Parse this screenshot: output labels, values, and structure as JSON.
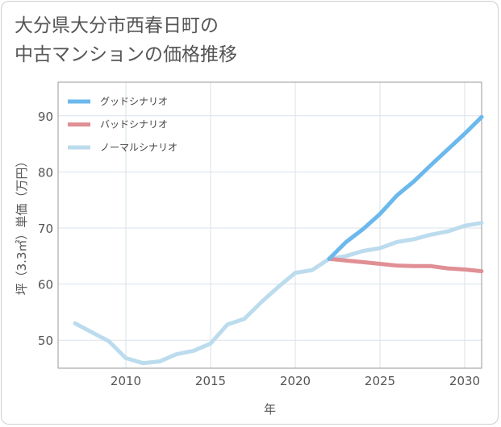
{
  "title_lines": [
    "大分県大分市西春日町の",
    "中古マンションの価格推移"
  ],
  "chart_data": {
    "type": "line",
    "xlabel": "年",
    "ylabel": "坪（3.3㎡）単価（万円）",
    "xlim": [
      2006,
      2031
    ],
    "ylim": [
      45,
      96
    ],
    "x_ticks": [
      2010,
      2015,
      2020,
      2025,
      2030
    ],
    "y_ticks": [
      50,
      60,
      70,
      80,
      90
    ],
    "grid": true,
    "legend_position": "top-left",
    "series": [
      {
        "name": "グッドシナリオ",
        "color": "#6bb8ec",
        "x": [
          2022,
          2023,
          2024,
          2025,
          2026,
          2027,
          2028,
          2029,
          2030,
          2031
        ],
        "y": [
          64.5,
          67.5,
          69.8,
          72.5,
          75.8,
          78.3,
          81.2,
          84.0,
          86.8,
          89.8
        ]
      },
      {
        "name": "バッドシナリオ",
        "color": "#e08f95",
        "x": [
          2022,
          2023,
          2024,
          2025,
          2026,
          2027,
          2028,
          2029,
          2030,
          2031
        ],
        "y": [
          64.5,
          64.2,
          63.9,
          63.6,
          63.3,
          63.2,
          63.2,
          62.8,
          62.6,
          62.3
        ]
      },
      {
        "name": "ノーマルシナリオ",
        "color": "#bcdcee",
        "x": [
          2007,
          2008,
          2009,
          2010,
          2011,
          2012,
          2013,
          2014,
          2015,
          2016,
          2017,
          2018,
          2019,
          2020,
          2021,
          2022,
          2023,
          2024,
          2025,
          2026,
          2027,
          2028,
          2029,
          2030,
          2031
        ],
        "y": [
          53.0,
          51.4,
          49.8,
          46.8,
          45.9,
          46.2,
          47.5,
          48.1,
          49.4,
          52.8,
          53.8,
          56.8,
          59.5,
          62.0,
          62.5,
          64.5,
          65.0,
          65.9,
          66.4,
          67.5,
          68.0,
          68.8,
          69.4,
          70.4,
          70.9
        ]
      }
    ]
  }
}
